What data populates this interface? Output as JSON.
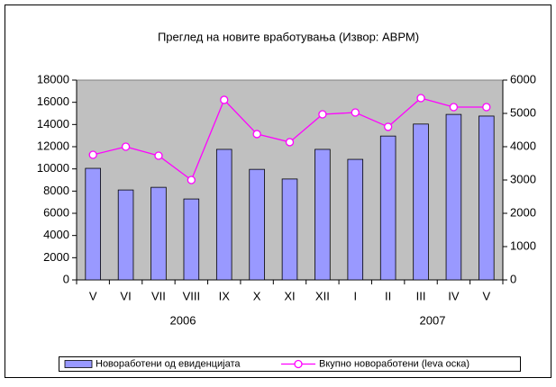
{
  "chart_data": {
    "type": "bar_line",
    "title": "Преглед на новите вработувања (Извор: АВРМ)",
    "categories": [
      "V",
      "VI",
      "VII",
      "VIII",
      "IX",
      "X",
      "XI",
      "XII",
      "I",
      "II",
      "III",
      "IV",
      "V"
    ],
    "category_groups": [
      "2006",
      "2007"
    ],
    "series": [
      {
        "name": "Новоработени од евиденцијата",
        "type": "bar",
        "axis": "y2",
        "color": "#9999ff",
        "values": [
          3350,
          2700,
          2780,
          2430,
          3920,
          3320,
          3030,
          3920,
          3620,
          4320,
          4680,
          4970,
          4920
        ]
      },
      {
        "name": "Вкупно новоработени (leva оска)",
        "type": "line",
        "axis": "y",
        "color": "#ff00ff",
        "values": [
          11270,
          12000,
          11190,
          9000,
          16220,
          13140,
          12410,
          14920,
          15080,
          13790,
          16380,
          15570,
          15570
        ]
      }
    ],
    "ylim": [
      0,
      18000
    ],
    "yticks": [
      0,
      2000,
      4000,
      6000,
      8000,
      10000,
      12000,
      14000,
      16000,
      18000
    ],
    "y2lim": [
      0,
      6000
    ],
    "y2ticks": [
      0,
      1000,
      2000,
      3000,
      4000,
      5000,
      6000
    ],
    "grid": false,
    "legend": "bottom",
    "plot_background": "#c0c0c0"
  }
}
